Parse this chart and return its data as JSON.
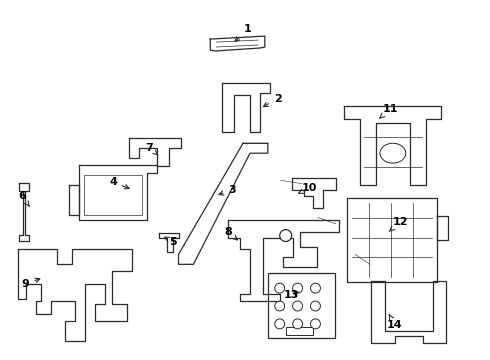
{
  "background_color": "#ffffff",
  "line_color": "#2a2a2a",
  "label_color": "#000000",
  "label_data": [
    [
      1,
      248,
      28,
      232,
      43
    ],
    [
      2,
      278,
      98,
      260,
      108
    ],
    [
      3,
      232,
      190,
      215,
      196
    ],
    [
      4,
      112,
      182,
      132,
      190
    ],
    [
      5,
      172,
      242,
      163,
      237
    ],
    [
      6,
      20,
      196,
      28,
      207
    ],
    [
      7,
      148,
      148,
      158,
      155
    ],
    [
      8,
      228,
      232,
      240,
      243
    ],
    [
      9,
      24,
      285,
      42,
      278
    ],
    [
      10,
      310,
      188,
      298,
      194
    ],
    [
      11,
      392,
      108,
      378,
      120
    ],
    [
      12,
      402,
      222,
      390,
      232
    ],
    [
      13,
      292,
      296,
      302,
      291
    ],
    [
      14,
      396,
      326,
      390,
      315
    ]
  ]
}
